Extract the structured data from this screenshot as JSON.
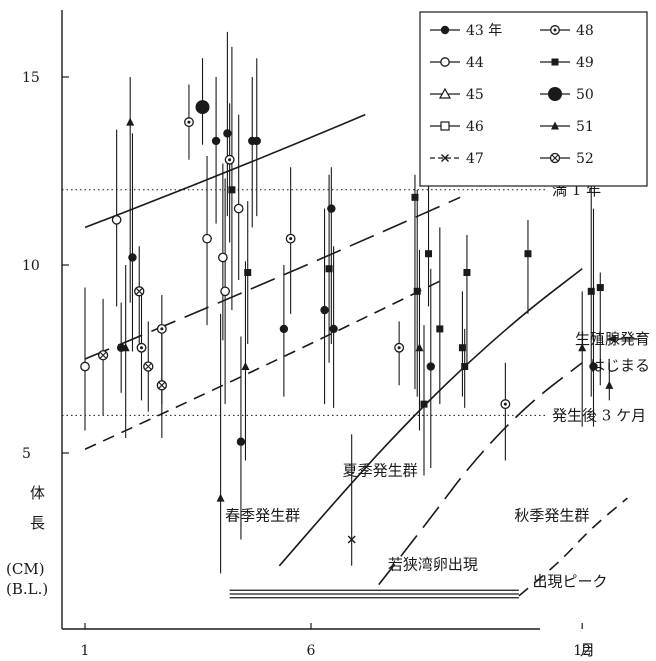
{
  "chart_data": {
    "type": "scatter",
    "x_unit_label": "月",
    "x_ticks": [
      1,
      6,
      12
    ],
    "y_ticks": [
      5,
      10,
      15
    ],
    "xlim": [
      0.6,
      13.2
    ],
    "ylim": [
      1.0,
      17.4
    ],
    "y_axis_label": [
      "体",
      "長",
      "(CM)",
      "(B.L.)"
    ],
    "reference_lines": [
      {
        "y": 12.0,
        "label": "満 1 年"
      },
      {
        "y": 6.0,
        "label": "発生後 3 ケ月"
      }
    ],
    "annotations": [
      {
        "text": "生殖腺発育",
        "x": 13.45,
        "y": 7.9,
        "arrow": true
      },
      {
        "text": "はじまる",
        "x": 13.45,
        "y": 7.2
      },
      {
        "text": "夏季発生群",
        "x": 6.7,
        "y": 4.4
      },
      {
        "text": "春季発生群",
        "x": 4.1,
        "y": 3.2
      },
      {
        "text": "秋季発生群",
        "x": 10.5,
        "y": 3.2
      },
      {
        "text": "若狭湾卵出現",
        "x": 7.7,
        "y": 1.9
      },
      {
        "text": "出現ピーク",
        "x": 10.9,
        "y": 1.45
      }
    ],
    "legend": [
      {
        "label": "43 年",
        "marker": "filled-circle"
      },
      {
        "label": "44",
        "marker": "open-circle"
      },
      {
        "label": "45",
        "marker": "open-triangle"
      },
      {
        "label": "46",
        "marker": "open-square"
      },
      {
        "label": "47",
        "marker": "x"
      },
      {
        "label": "48",
        "marker": "dotted-circle"
      },
      {
        "label": "49",
        "marker": "filled-square"
      },
      {
        "label": "50",
        "marker": "big-filled-circle"
      },
      {
        "label": "51",
        "marker": "filled-triangle"
      },
      {
        "label": "52",
        "marker": "crossed-circle"
      }
    ],
    "curves": [
      {
        "style": "solid",
        "x": [
          1.0,
          7.2
        ],
        "y": [
          11.0,
          14.0
        ]
      },
      {
        "style": "longdash",
        "x": [
          1.0,
          9.3
        ],
        "y": [
          7.5,
          11.8
        ]
      },
      {
        "style": "dash",
        "x": [
          1.0,
          8.9
        ],
        "y": [
          5.1,
          9.6
        ]
      },
      {
        "style": "solid",
        "x": [
          5.3,
          6.6,
          7.8,
          9.2,
          10.7,
          12.0
        ],
        "y": [
          2.0,
          3.8,
          5.4,
          7.1,
          8.7,
          9.9
        ]
      },
      {
        "style": "longdash",
        "x": [
          7.5,
          8.6,
          9.6,
          10.8,
          12.0
        ],
        "y": [
          1.5,
          3.2,
          4.8,
          6.3,
          7.4
        ]
      },
      {
        "style": "dash",
        "x": [
          10.6,
          11.5,
          12.2,
          13.0
        ],
        "y": [
          1.2,
          2.1,
          3.0,
          3.8
        ]
      }
    ],
    "peak_bars": [
      {
        "x": [
          4.2,
          10.6
        ],
        "y": 1.35
      },
      {
        "x": [
          4.2,
          10.6
        ],
        "y": 1.25
      },
      {
        "x": [
          4.2,
          10.6
        ],
        "y": 1.15
      }
    ],
    "points": [
      {
        "x": 1.0,
        "y": 7.3,
        "lo": 5.6,
        "hi": 9.4,
        "m": "open-circle"
      },
      {
        "x": 1.4,
        "y": 7.6,
        "lo": 6.0,
        "hi": 9.1,
        "m": "crossed-circle"
      },
      {
        "x": 1.7,
        "y": 11.2,
        "lo": 8.9,
        "hi": 13.6,
        "m": "open-circle"
      },
      {
        "x": 1.8,
        "y": 7.8,
        "lo": 6.6,
        "hi": 9.0,
        "m": "filled-circle"
      },
      {
        "x": 1.9,
        "y": 7.8,
        "lo": 5.4,
        "hi": 10.0,
        "m": "filled-triangle"
      },
      {
        "x": 2.0,
        "y": 13.8,
        "lo": 9.0,
        "hi": 15.0,
        "m": "filled-triangle"
      },
      {
        "x": 2.05,
        "y": 10.2,
        "lo": 7.7,
        "hi": 13.5,
        "m": "filled-circle"
      },
      {
        "x": 2.2,
        "y": 9.3,
        "lo": 7.8,
        "hi": 10.5,
        "m": "crossed-circle"
      },
      {
        "x": 2.25,
        "y": 7.8,
        "lo": 6.4,
        "hi": 9.3,
        "m": "dotted-circle"
      },
      {
        "x": 2.4,
        "y": 7.3,
        "lo": 6.1,
        "hi": 8.5,
        "m": "crossed-circle"
      },
      {
        "x": 2.7,
        "y": 8.3,
        "lo": 6.3,
        "hi": 9.2,
        "m": "dotted-circle"
      },
      {
        "x": 2.7,
        "y": 6.8,
        "lo": 5.4,
        "hi": 8.3,
        "m": "crossed-circle"
      },
      {
        "x": 3.3,
        "y": 13.8,
        "lo": 12.8,
        "hi": 14.8,
        "m": "dotted-circle"
      },
      {
        "x": 3.6,
        "y": 14.2,
        "lo": 13.2,
        "hi": 15.5,
        "m": "big-filled-circle"
      },
      {
        "x": 3.7,
        "y": 10.7,
        "lo": 8.4,
        "hi": 12.9,
        "m": "open-circle"
      },
      {
        "x": 3.9,
        "y": 13.3,
        "lo": 11.1,
        "hi": 15.0,
        "m": "filled-circle"
      },
      {
        "x": 4.0,
        "y": 3.8,
        "lo": 1.8,
        "hi": 8.7,
        "m": "filled-triangle"
      },
      {
        "x": 4.05,
        "y": 10.2,
        "lo": 8.0,
        "hi": 12.7,
        "m": "open-circle"
      },
      {
        "x": 4.1,
        "y": 9.3,
        "lo": 6.3,
        "hi": 12.3,
        "m": "open-circle"
      },
      {
        "x": 4.15,
        "y": 13.5,
        "lo": 11.3,
        "hi": 16.2,
        "m": "filled-circle"
      },
      {
        "x": 4.2,
        "y": 12.8,
        "lo": 10.6,
        "hi": 14.3,
        "m": "dotted-circle"
      },
      {
        "x": 4.25,
        "y": 12.0,
        "lo": 8.8,
        "hi": 15.8,
        "m": "filled-square"
      },
      {
        "x": 4.4,
        "y": 11.5,
        "lo": 9.6,
        "hi": 14.0,
        "m": "open-circle"
      },
      {
        "x": 4.45,
        "y": 5.3,
        "lo": 2.7,
        "hi": 8.1,
        "m": "filled-circle"
      },
      {
        "x": 4.55,
        "y": 7.3,
        "lo": 4.8,
        "hi": 10.1,
        "m": "filled-triangle"
      },
      {
        "x": 4.6,
        "y": 9.8,
        "lo": 7.9,
        "hi": 11.7,
        "m": "filled-square"
      },
      {
        "x": 4.7,
        "y": 13.3,
        "lo": 11.0,
        "hi": 15.0,
        "m": "filled-circle"
      },
      {
        "x": 4.8,
        "y": 13.3,
        "lo": 11.3,
        "hi": 15.5,
        "m": "filled-circle"
      },
      {
        "x": 5.4,
        "y": 8.3,
        "lo": 6.5,
        "hi": 10.0,
        "m": "filled-circle"
      },
      {
        "x": 5.55,
        "y": 10.7,
        "lo": 8.7,
        "hi": 12.6,
        "m": "dotted-circle"
      },
      {
        "x": 6.3,
        "y": 8.8,
        "lo": 6.3,
        "hi": 11.5,
        "m": "filled-circle"
      },
      {
        "x": 6.4,
        "y": 9.9,
        "lo": 7.4,
        "hi": 12.4,
        "m": "filled-square"
      },
      {
        "x": 6.45,
        "y": 11.5,
        "lo": 7.9,
        "hi": 12.6,
        "m": "filled-circle"
      },
      {
        "x": 6.5,
        "y": 8.3,
        "lo": 6.2,
        "hi": 10.5,
        "m": "filled-circle"
      },
      {
        "x": 6.9,
        "y": 2.7,
        "lo": 2.0,
        "hi": 5.5,
        "m": "x"
      },
      {
        "x": 7.95,
        "y": 7.8,
        "lo": 6.8,
        "hi": 8.5,
        "m": "dotted-circle"
      },
      {
        "x": 8.3,
        "y": 11.8,
        "lo": 6.7,
        "hi": 12.4,
        "m": "filled-square"
      },
      {
        "x": 8.35,
        "y": 9.3,
        "lo": 6.5,
        "hi": 12.0,
        "m": "filled-square"
      },
      {
        "x": 8.4,
        "y": 7.8,
        "lo": 5.6,
        "hi": 10.4,
        "m": "filled-triangle"
      },
      {
        "x": 8.5,
        "y": 6.3,
        "lo": 4.4,
        "hi": 8.4,
        "m": "filled-square"
      },
      {
        "x": 8.6,
        "y": 10.3,
        "lo": 8.9,
        "hi": 12.8,
        "m": "filled-square"
      },
      {
        "x": 8.65,
        "y": 7.3,
        "lo": 4.6,
        "hi": 9.9,
        "m": "filled-circle"
      },
      {
        "x": 8.85,
        "y": 8.3,
        "lo": 6.3,
        "hi": 11.0,
        "m": "filled-square"
      },
      {
        "x": 9.35,
        "y": 7.8,
        "lo": 6.5,
        "hi": 9.3,
        "m": "filled-square"
      },
      {
        "x": 9.45,
        "y": 9.8,
        "lo": 7.3,
        "hi": 10.8,
        "m": "filled-square"
      },
      {
        "x": 9.4,
        "y": 7.3,
        "lo": 6.2,
        "hi": 8.3,
        "m": "filled-square"
      },
      {
        "x": 10.3,
        "y": 6.3,
        "lo": 4.8,
        "hi": 7.4,
        "m": "dotted-circle"
      },
      {
        "x": 10.8,
        "y": 10.3,
        "lo": 8.7,
        "hi": 11.2,
        "m": "filled-square"
      },
      {
        "x": 12.0,
        "y": 7.8,
        "lo": 5.7,
        "hi": 9.3,
        "m": "filled-triangle"
      },
      {
        "x": 12.2,
        "y": 9.3,
        "lo": 6.5,
        "hi": 13.0,
        "m": "filled-square"
      },
      {
        "x": 12.25,
        "y": 7.3,
        "lo": 5.7,
        "hi": 11.5,
        "m": "filled-circle"
      },
      {
        "x": 12.4,
        "y": 9.4,
        "lo": 6.8,
        "hi": 9.8,
        "m": "filled-square"
      },
      {
        "x": 12.6,
        "y": 6.8,
        "lo": 6.4,
        "hi": 7.4,
        "m": "filled-triangle"
      }
    ]
  }
}
